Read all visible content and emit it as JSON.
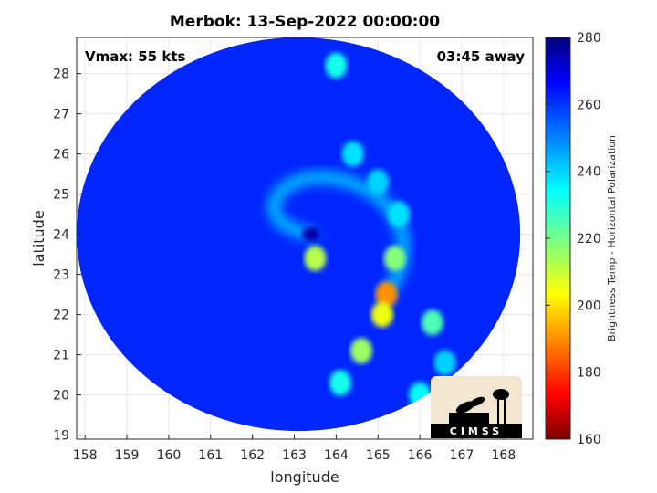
{
  "chart_data": {
    "type": "heatmap",
    "title": "Merbok: 13-Sep-2022 00:00:00",
    "xlabel": "longitude",
    "ylabel": "latitude",
    "xlim": [
      157.8,
      168.7
    ],
    "ylim": [
      18.9,
      28.9
    ],
    "x_ticks": [
      "158",
      "159",
      "160",
      "161",
      "162",
      "163",
      "164",
      "165",
      "166",
      "167",
      "168"
    ],
    "y_ticks": [
      "19",
      "20",
      "21",
      "22",
      "23",
      "24",
      "25",
      "26",
      "27",
      "28"
    ],
    "grid": true,
    "annotations": {
      "vmax": "Vmax: 55 kts",
      "time_away": "03:45 away"
    },
    "colorbar": {
      "label": "Brightness Temp - Horizontal Polarization",
      "range": [
        160,
        280
      ],
      "ticks": [
        "160",
        "180",
        "200",
        "220",
        "240",
        "260",
        "280"
      ],
      "colormap": "jet"
    },
    "swath": {
      "center": [
        163.1,
        24.0
      ],
      "radius_lon": 5.3,
      "radius_lat": 4.9,
      "background_value": 262
    },
    "storm_center": [
      163.4,
      24.0
    ],
    "features": [
      {
        "x": 163.5,
        "y": 23.4,
        "value": 212
      },
      {
        "x": 165.4,
        "y": 23.4,
        "value": 218
      },
      {
        "x": 165.2,
        "y": 22.5,
        "value": 190
      },
      {
        "x": 165.1,
        "y": 22.0,
        "value": 205
      },
      {
        "x": 166.3,
        "y": 21.8,
        "value": 225
      },
      {
        "x": 164.6,
        "y": 21.1,
        "value": 215
      },
      {
        "x": 164.1,
        "y": 20.3,
        "value": 232
      },
      {
        "x": 165.5,
        "y": 24.5,
        "value": 238
      },
      {
        "x": 166.0,
        "y": 20.0,
        "value": 235
      },
      {
        "x": 164.0,
        "y": 28.2,
        "value": 232
      },
      {
        "x": 164.4,
        "y": 26.0,
        "value": 238
      },
      {
        "x": 165.0,
        "y": 25.3,
        "value": 240
      },
      {
        "x": 166.6,
        "y": 20.8,
        "value": 240
      }
    ],
    "logo": "CIMSS"
  }
}
